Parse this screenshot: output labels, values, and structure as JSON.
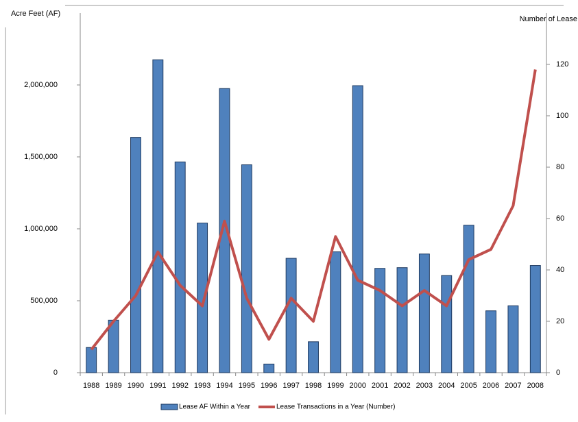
{
  "chart_data": {
    "type": "bar-line",
    "y_label": "Acre Feet (AF)",
    "y2_label": "Number of Lease",
    "categories": [
      "1988",
      "1989",
      "1990",
      "1991",
      "1992",
      "1993",
      "1994",
      "1995",
      "1996",
      "1997",
      "1998",
      "1999",
      "2000",
      "2001",
      "2002",
      "2003",
      "2004",
      "2005",
      "2006",
      "2007",
      "2008"
    ],
    "series": [
      {
        "name": "Lease AF Within a Year",
        "color": "#4f81bd",
        "kind": "bar",
        "values": [
          175000,
          365000,
          1635000,
          2175000,
          1465000,
          1040000,
          1975000,
          1445000,
          60000,
          795000,
          215000,
          840000,
          1995000,
          725000,
          730000,
          825000,
          675000,
          1025000,
          430000,
          465000,
          745000
        ]
      },
      {
        "name": "Lease Transactions in a Year (Number)",
        "color": "#c0504d",
        "kind": "line",
        "axis": "y2",
        "values": [
          9,
          20,
          30,
          47,
          34,
          26,
          59,
          29,
          13,
          29,
          20,
          53,
          36,
          32,
          26,
          32,
          26,
          44,
          48,
          65,
          118
        ]
      }
    ],
    "ylim": [
      0,
      2500000
    ],
    "yticks": [
      0,
      {
        "value": 500000,
        "label": "500,000"
      },
      {
        "value": 1000000,
        "label": "1,000,000"
      },
      {
        "value": 1500000,
        "label": "1,500,000"
      },
      {
        "value": 2000000,
        "label": "2,000,000"
      }
    ],
    "y2lim": [
      0,
      140
    ],
    "y2ticks": [
      0,
      20,
      40,
      60,
      80,
      100,
      120
    ],
    "legend": "bottom"
  }
}
